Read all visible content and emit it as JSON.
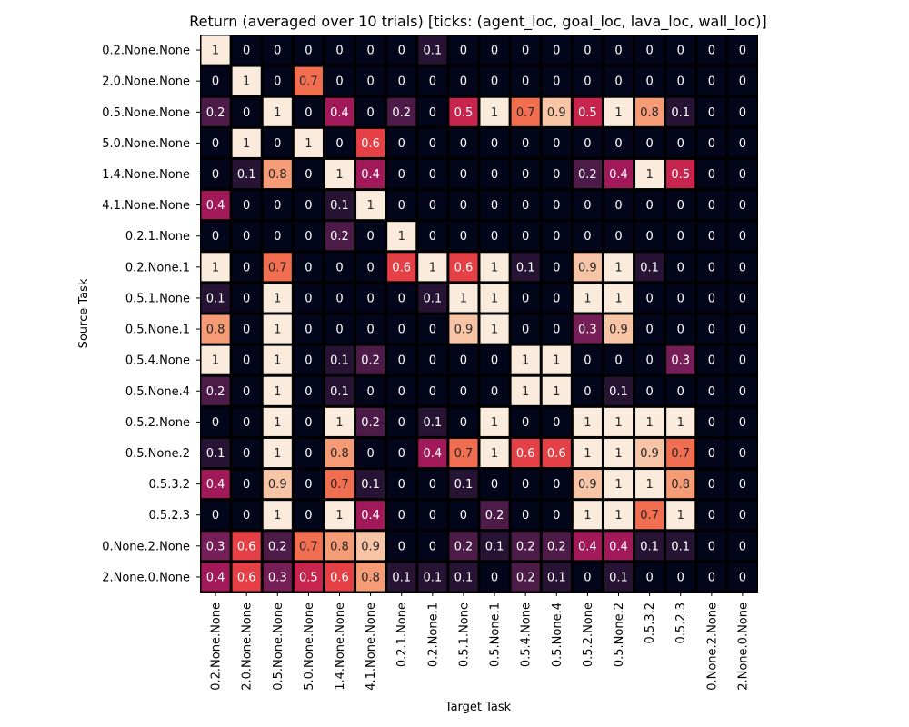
{
  "chart_data": {
    "type": "heatmap",
    "title": "Return (averaged over 10 trials) [ticks: (agent_loc, goal_loc, lava_loc, wall_loc)]",
    "xlabel": "Target Task",
    "ylabel": "Source Task",
    "x_categories": [
      "0.2.None.None",
      "2.0.None.None",
      "0.5.None.None",
      "5.0.None.None",
      "1.4.None.None",
      "4.1.None.None",
      "0.2.1.None",
      "0.2.None.1",
      "0.5.1.None",
      "0.5.None.1",
      "0.5.4.None",
      "0.5.None.4",
      "0.5.2.None",
      "0.5.None.2",
      "0.5.3.2",
      "0.5.2.3",
      "0.None.2.None",
      "2.None.0.None"
    ],
    "y_categories": [
      "0.2.None.None",
      "2.0.None.None",
      "0.5.None.None",
      "5.0.None.None",
      "1.4.None.None",
      "4.1.None.None",
      "0.2.1.None",
      "0.2.None.1",
      "0.5.1.None",
      "0.5.None.1",
      "0.5.4.None",
      "0.5.None.4",
      "0.5.2.None",
      "0.5.None.2",
      "0.5.3.2",
      "0.5.2.3",
      "0.None.2.None",
      "2.None.0.None"
    ],
    "values": [
      [
        1,
        0,
        0,
        0,
        0,
        0,
        0,
        0.1,
        0,
        0,
        0,
        0,
        0,
        0,
        0,
        0,
        0,
        0
      ],
      [
        0,
        1,
        0,
        0.7,
        0,
        0,
        0,
        0,
        0,
        0,
        0,
        0,
        0,
        0,
        0,
        0,
        0,
        0
      ],
      [
        0.2,
        0,
        1,
        0,
        0.4,
        0,
        0.2,
        0,
        0.5,
        1,
        0.7,
        0.9,
        0.5,
        1,
        0.8,
        0.1,
        0,
        0
      ],
      [
        0,
        1,
        0,
        1,
        0,
        0.6,
        0,
        0,
        0,
        0,
        0,
        0,
        0,
        0,
        0,
        0,
        0,
        0
      ],
      [
        0,
        0.1,
        0.8,
        0,
        1,
        0.4,
        0,
        0,
        0,
        0,
        0,
        0,
        0.2,
        0.4,
        1,
        0.5,
        0,
        0
      ],
      [
        0.4,
        0,
        0,
        0,
        0.1,
        1,
        0,
        0,
        0,
        0,
        0,
        0,
        0,
        0,
        0,
        0,
        0,
        0
      ],
      [
        0,
        0,
        0,
        0,
        0.2,
        0,
        1,
        0,
        0,
        0,
        0,
        0,
        0,
        0,
        0,
        0,
        0,
        0
      ],
      [
        1,
        0,
        0.7,
        0,
        0,
        0,
        0.6,
        1,
        0.6,
        1,
        0.1,
        0,
        0.9,
        1,
        0.1,
        0,
        0,
        0
      ],
      [
        0.1,
        0,
        1,
        0,
        0,
        0,
        0,
        0.1,
        1,
        1,
        0,
        0,
        1,
        1,
        0,
        0,
        0,
        0
      ],
      [
        0.8,
        0,
        1,
        0,
        0,
        0,
        0,
        0,
        0.9,
        1,
        0,
        0,
        0.3,
        0.9,
        0,
        0,
        0,
        0
      ],
      [
        1,
        0,
        1,
        0,
        0.1,
        0.2,
        0,
        0,
        0,
        0,
        1,
        1,
        0,
        0,
        0,
        0.3,
        0,
        0
      ],
      [
        0.2,
        0,
        1,
        0,
        0.1,
        0,
        0,
        0,
        0,
        0,
        1,
        1,
        0,
        0.1,
        0,
        0,
        0,
        0
      ],
      [
        0,
        0,
        1,
        0,
        1,
        0.2,
        0,
        0.1,
        0,
        1,
        0,
        0,
        1,
        1,
        1,
        1,
        0,
        0
      ],
      [
        0.1,
        0,
        1,
        0,
        0.8,
        0,
        0,
        0.4,
        0.7,
        1,
        0.6,
        0.6,
        1,
        1,
        0.9,
        0.7,
        0,
        0
      ],
      [
        0.4,
        0,
        0.9,
        0,
        0.7,
        0.1,
        0,
        0,
        0.1,
        0,
        0,
        0,
        0.9,
        1,
        1,
        0.8,
        0,
        0
      ],
      [
        0,
        0,
        1,
        0,
        1,
        0.4,
        0,
        0,
        0,
        0.2,
        0,
        0,
        1,
        1,
        0.7,
        1,
        0,
        0
      ],
      [
        0.3,
        0.6,
        0.2,
        0.7,
        0.8,
        0.9,
        0,
        0,
        0.2,
        0.1,
        0.2,
        0.2,
        0.4,
        0.4,
        0.1,
        0.1,
        0,
        0
      ],
      [
        0.4,
        0.6,
        0.3,
        0.5,
        0.6,
        0.8,
        0.1,
        0.1,
        0.1,
        0,
        0.2,
        0.1,
        0,
        0.1,
        0,
        0,
        0,
        0
      ]
    ],
    "value_range": [
      0,
      1
    ],
    "colormap": "rocket",
    "colormap_stops": [
      "#03051a",
      "#36193e",
      "#701f57",
      "#ad1759",
      "#e13342",
      "#f37651",
      "#f6b48f",
      "#faebdd"
    ],
    "cell_border_color": "#000000",
    "grid": false,
    "legend": "none"
  }
}
